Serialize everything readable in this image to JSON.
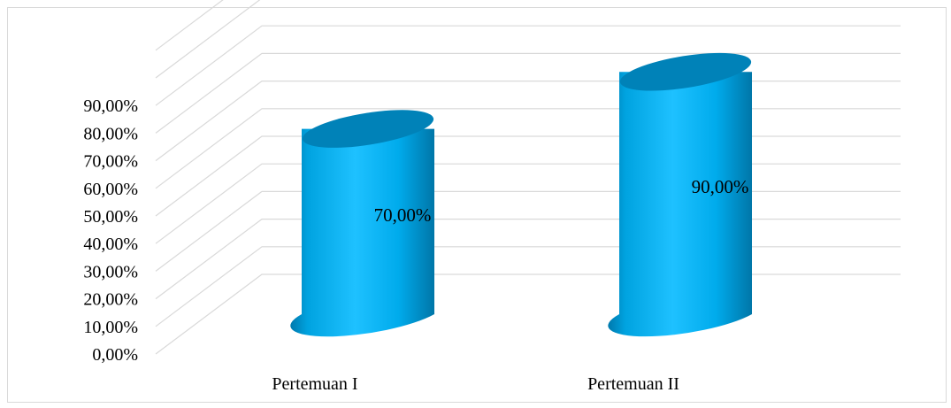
{
  "chart_data": {
    "type": "bar",
    "style": "3d-cylinder",
    "categories": [
      "Pertemuan I",
      "Pertemuan II"
    ],
    "values": [
      70,
      90
    ],
    "data_labels": [
      "70,00%",
      "90,00%"
    ],
    "ylim": [
      0,
      90
    ],
    "y_ticks": [
      "0,00%",
      "10,00%",
      "20,00%",
      "30,00%",
      "40,00%",
      "50,00%",
      "60,00%",
      "70,00%",
      "80,00%",
      "90,00%"
    ],
    "title": "",
    "xlabel": "",
    "ylabel": "",
    "grid": true,
    "legend": "none",
    "colors": {
      "bar_body": "#00aeef",
      "bar_highlight": "#35c8ff",
      "bar_shadow": "#0078a8",
      "bar_top": "#0082b8",
      "gridline": "#d9d9d9"
    }
  }
}
